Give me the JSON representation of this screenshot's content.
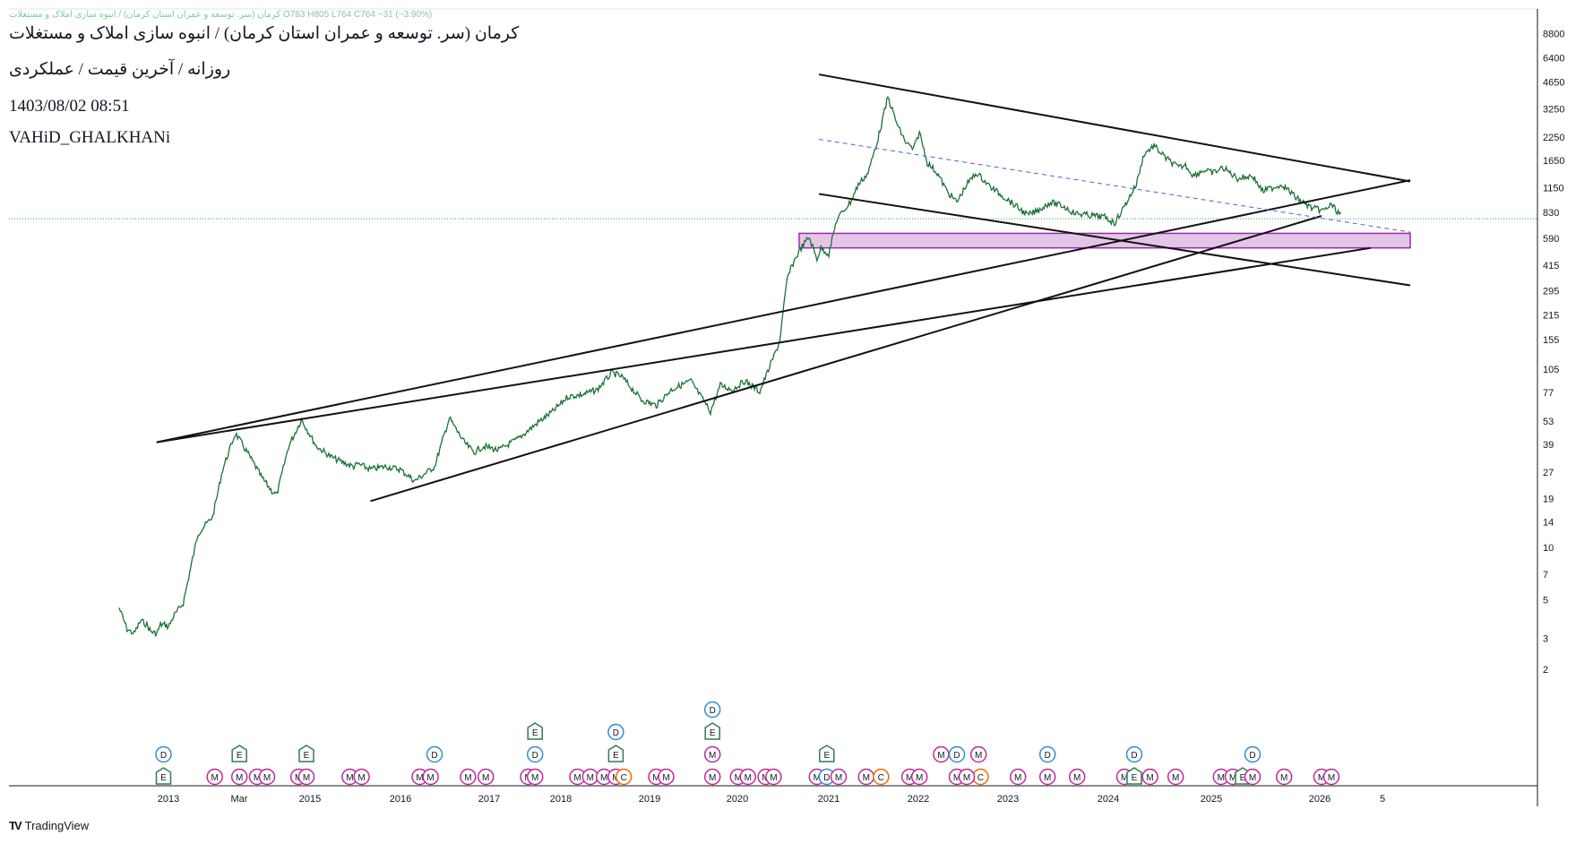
{
  "header": {
    "ohlc_line": "کرمان (سر. توسعه و عمران استان کرمان) / انبوه سازی املاک و مستغلات  O783  H805  L764  C764  −31  (−3.90%)",
    "title": "کرمان (سر. توسعه و عمران استان کرمان) / انبوه سازی املاک و مستغلات",
    "subtitle": "روزانه / آخرین قیمت / عملکردی",
    "datetime": "1403/08/02 08:51",
    "author": "VAHiD_GHALKHANi"
  },
  "brand": {
    "logo_text": "TV",
    "name": "TradingView"
  },
  "colors": {
    "candles": "#1e7a3a",
    "trendlines": "#111111",
    "zone_fill": "#e3c6e6",
    "zone_border": "#9c27b0",
    "midline": "#5c5ce0",
    "price_line": "#26a65b",
    "earnings": "#2e7d4f",
    "dividend": "#2d8fd8",
    "meeting": "#c2279a",
    "capital": "#ef6c00"
  },
  "chart_data": {
    "type": "line",
    "scale": "log",
    "grid": false,
    "price_axis_ticks": [
      "8800",
      "6400",
      "4650",
      "3250",
      "2250",
      "1650",
      "1150",
      "830",
      "590",
      "415",
      "295",
      "215",
      "155",
      "105",
      "77",
      "53",
      "39",
      "27",
      "19",
      "14",
      "10",
      "7",
      "5",
      "3",
      "2"
    ],
    "time_axis_ticks": [
      "2013",
      "Mar",
      "2015",
      "2016",
      "2017",
      "2018",
      "2019",
      "2020",
      "2021",
      "2022",
      "2023",
      "2024",
      "2025",
      "2026",
      "5"
    ],
    "last_price": 764,
    "series": [
      {
        "x": [
          2012.5,
          2012.58,
          2012.65,
          2012.72,
          2012.78,
          2012.82,
          2012.88,
          2012.92,
          2012.97,
          2013.0,
          2013.05,
          2013.15,
          2013.3,
          2013.45,
          2013.55,
          2013.68,
          2013.8,
          2013.95,
          2014.05,
          2014.1,
          2014.22,
          2014.35,
          2014.5,
          2014.65,
          2014.75,
          2014.88,
          2014.92,
          2015.05,
          2015.2,
          2015.35,
          2015.5,
          2015.7,
          2015.85,
          2016.0,
          2016.1,
          2016.2,
          2016.35,
          2016.55,
          2016.75,
          2016.9,
          2017.05,
          2017.2,
          2017.35,
          2017.5,
          2017.6,
          2017.8,
          2017.95,
          2018.1,
          2018.3,
          2018.5,
          2018.6,
          2018.72,
          2018.85,
          2019.0,
          2019.2,
          2019.28,
          2019.35,
          2019.42,
          2019.5,
          2019.58,
          2019.62,
          2019.7,
          2019.78,
          2019.85,
          2019.92,
          2020.0,
          2020.1,
          2020.2,
          2020.3,
          2020.4,
          2020.48,
          2020.56,
          2020.62,
          2020.7,
          2020.8,
          2020.9,
          2021.0,
          2021.1,
          2021.2,
          2021.35,
          2021.5,
          2021.6,
          2021.72,
          2021.82,
          2021.95,
          2022.08,
          2022.2,
          2022.35,
          2022.5,
          2022.6,
          2022.7,
          2022.82,
          2022.9,
          2023.0,
          2023.12,
          2023.25,
          2023.32,
          2023.4,
          2023.5,
          2023.6,
          2023.7,
          2023.85,
          2024.0,
          2024.1,
          2024.2,
          2024.3,
          2024.45,
          2024.6,
          2024.72,
          2024.8,
          2024.87,
          2024.91
        ],
        "y": [
          4.5,
          3.4,
          3.2,
          3.8,
          3.6,
          3.3,
          3.2,
          3.6,
          3.6,
          3.5,
          4.0,
          4.8,
          12,
          15,
          28,
          45,
          35,
          25,
          21,
          20,
          38,
          54,
          38,
          33,
          31,
          29,
          30,
          28,
          29,
          28,
          24,
          29,
          55,
          40,
          35,
          38,
          36,
          42,
          52,
          60,
          73,
          75,
          80,
          100,
          95,
          70,
          65,
          80,
          90,
          60,
          85,
          80,
          90,
          78,
          150,
          350,
          440,
          520,
          600,
          450,
          520,
          480,
          750,
          850,
          950,
          1200,
          1400,
          2200,
          3800,
          2600,
          2100,
          1900,
          2400,
          1600,
          1400,
          1100,
          950,
          1200,
          1400,
          1150,
          1000,
          900,
          800,
          850,
          950,
          900,
          820,
          800,
          780,
          720,
          900,
          1200,
          1800,
          2000,
          1700,
          1500,
          1550,
          1350,
          1450,
          1400,
          1500,
          1300,
          1350,
          1100,
          1150,
          1200,
          1000,
          880,
          850,
          920,
          830,
          780
        ]
      }
    ],
    "annotations": {
      "zone": {
        "type": "rectangle",
        "x": [
          2019.4,
          2025.6
        ],
        "y": [
          520,
          630
        ]
      },
      "trendlines": [
        {
          "x": [
            2012.88,
            2025.6
          ],
          "y": [
            40,
            1270
          ]
        },
        {
          "x": [
            2015.05,
            2024.7
          ],
          "y": [
            18.4,
            793
          ]
        },
        {
          "x": [
            2012.88,
            2025.2
          ],
          "y": [
            40,
            520
          ]
        },
        {
          "x": [
            2019.6,
            2025.6
          ],
          "y": [
            5130,
            1250
          ]
        },
        {
          "x": [
            2019.6,
            2025.6
          ],
          "y": [
            1060,
            317
          ]
        }
      ],
      "midline": {
        "x": [
          2019.6,
          2025.6
        ],
        "y": [
          2180,
          640
        ]
      }
    },
    "events": [
      {
        "code": "E",
        "x": 2012.95,
        "row": 0,
        "type": "earnings"
      },
      {
        "code": "D",
        "x": 2012.95,
        "row": 1,
        "type": "dividend"
      },
      {
        "code": "M",
        "x": 2013.47,
        "row": 0,
        "type": "meeting"
      },
      {
        "code": "M",
        "x": 2013.72,
        "row": 0,
        "type": "meeting"
      },
      {
        "code": "M",
        "x": 2013.9,
        "row": 0,
        "type": "meeting"
      },
      {
        "code": "M",
        "x": 2014.0,
        "row": 0,
        "type": "meeting"
      },
      {
        "code": "E",
        "x": 2013.72,
        "row": 1,
        "type": "earnings"
      },
      {
        "code": "M",
        "x": 2014.32,
        "row": 0,
        "type": "meeting"
      },
      {
        "code": "M",
        "x": 2014.4,
        "row": 0,
        "type": "meeting"
      },
      {
        "code": "E",
        "x": 2014.4,
        "row": 1,
        "type": "earnings"
      },
      {
        "code": "M",
        "x": 2014.84,
        "row": 0,
        "type": "meeting"
      },
      {
        "code": "M",
        "x": 2014.96,
        "row": 0,
        "type": "meeting"
      },
      {
        "code": "M",
        "x": 2015.55,
        "row": 0,
        "type": "meeting"
      },
      {
        "code": "M",
        "x": 2015.66,
        "row": 0,
        "type": "meeting"
      },
      {
        "code": "D",
        "x": 2015.7,
        "row": 1,
        "type": "dividend"
      },
      {
        "code": "M",
        "x": 2016.04,
        "row": 0,
        "type": "meeting"
      },
      {
        "code": "M",
        "x": 2016.22,
        "row": 0,
        "type": "meeting"
      },
      {
        "code": "M",
        "x": 2016.65,
        "row": 0,
        "type": "meeting"
      },
      {
        "code": "M",
        "x": 2016.72,
        "row": 0,
        "type": "meeting"
      },
      {
        "code": "D",
        "x": 2016.72,
        "row": 1,
        "type": "dividend"
      },
      {
        "code": "E",
        "x": 2016.72,
        "row": 2,
        "type": "earnings"
      },
      {
        "code": "M",
        "x": 2017.15,
        "row": 0,
        "type": "meeting"
      },
      {
        "code": "M",
        "x": 2017.28,
        "row": 0,
        "type": "meeting"
      },
      {
        "code": "M",
        "x": 2017.42,
        "row": 0,
        "type": "meeting"
      },
      {
        "code": "M",
        "x": 2017.54,
        "row": 0,
        "type": "meeting"
      },
      {
        "code": "C",
        "x": 2017.62,
        "row": 0,
        "type": "capital"
      },
      {
        "code": "E",
        "x": 2017.54,
        "row": 1,
        "type": "earnings"
      },
      {
        "code": "D",
        "x": 2017.54,
        "row": 2,
        "type": "dividend"
      },
      {
        "code": "M",
        "x": 2017.95,
        "row": 0,
        "type": "meeting"
      },
      {
        "code": "M",
        "x": 2018.05,
        "row": 0,
        "type": "meeting"
      },
      {
        "code": "M",
        "x": 2018.52,
        "row": 0,
        "type": "meeting"
      },
      {
        "code": "M",
        "x": 2018.52,
        "row": 1,
        "type": "meeting"
      },
      {
        "code": "E",
        "x": 2018.52,
        "row": 2,
        "type": "earnings"
      },
      {
        "code": "D",
        "x": 2018.52,
        "row": 3,
        "type": "dividend"
      },
      {
        "code": "M",
        "x": 2018.78,
        "row": 0,
        "type": "meeting"
      },
      {
        "code": "M",
        "x": 2018.88,
        "row": 0,
        "type": "meeting"
      },
      {
        "code": "M",
        "x": 2019.06,
        "row": 0,
        "type": "meeting"
      },
      {
        "code": "M",
        "x": 2019.14,
        "row": 0,
        "type": "meeting"
      },
      {
        "code": "M",
        "x": 2019.58,
        "row": 0,
        "type": "meeting"
      },
      {
        "code": "D",
        "x": 2019.68,
        "row": 0,
        "type": "dividend"
      },
      {
        "code": "E",
        "x": 2019.68,
        "row": 1,
        "type": "earnings"
      },
      {
        "code": "M",
        "x": 2019.8,
        "row": 0,
        "type": "meeting"
      },
      {
        "code": "M",
        "x": 2020.08,
        "row": 0,
        "type": "meeting"
      },
      {
        "code": "C",
        "x": 2020.23,
        "row": 0,
        "type": "capital"
      },
      {
        "code": "M",
        "x": 2020.52,
        "row": 0,
        "type": "meeting"
      },
      {
        "code": "M",
        "x": 2020.62,
        "row": 0,
        "type": "meeting"
      },
      {
        "code": "M",
        "x": 2020.84,
        "row": 1,
        "type": "meeting"
      },
      {
        "code": "D",
        "x": 2021.0,
        "row": 1,
        "type": "dividend"
      },
      {
        "code": "M",
        "x": 2021.22,
        "row": 1,
        "type": "meeting"
      },
      {
        "code": "C",
        "x": 2021.24,
        "row": 0,
        "type": "capital"
      },
      {
        "code": "M",
        "x": 2021.0,
        "row": 0,
        "type": "meeting"
      },
      {
        "code": "M",
        "x": 2021.1,
        "row": 0,
        "type": "meeting"
      },
      {
        "code": "M",
        "x": 2021.62,
        "row": 0,
        "type": "meeting"
      },
      {
        "code": "M",
        "x": 2021.92,
        "row": 0,
        "type": "meeting"
      },
      {
        "code": "D",
        "x": 2021.92,
        "row": 1,
        "type": "dividend"
      },
      {
        "code": "M",
        "x": 2022.22,
        "row": 0,
        "type": "meeting"
      },
      {
        "code": "M",
        "x": 2022.7,
        "row": 0,
        "type": "meeting"
      },
      {
        "code": "E",
        "x": 2022.8,
        "row": 0,
        "type": "earnings"
      },
      {
        "code": "D",
        "x": 2022.8,
        "row": 1,
        "type": "dividend"
      },
      {
        "code": "M",
        "x": 2022.96,
        "row": 0,
        "type": "meeting"
      },
      {
        "code": "M",
        "x": 2023.22,
        "row": 0,
        "type": "meeting"
      },
      {
        "code": "M",
        "x": 2023.68,
        "row": 0,
        "type": "meeting"
      },
      {
        "code": "M",
        "x": 2023.8,
        "row": 0,
        "type": "meeting"
      },
      {
        "code": "E",
        "x": 2023.9,
        "row": 0,
        "type": "earnings"
      },
      {
        "code": "M",
        "x": 2024.0,
        "row": 0,
        "type": "meeting"
      },
      {
        "code": "D",
        "x": 2024.0,
        "row": 1,
        "type": "dividend"
      },
      {
        "code": "M",
        "x": 2024.32,
        "row": 0,
        "type": "meeting"
      },
      {
        "code": "M",
        "x": 2024.7,
        "row": 0,
        "type": "meeting"
      },
      {
        "code": "M",
        "x": 2024.8,
        "row": 0,
        "type": "meeting"
      }
    ]
  }
}
